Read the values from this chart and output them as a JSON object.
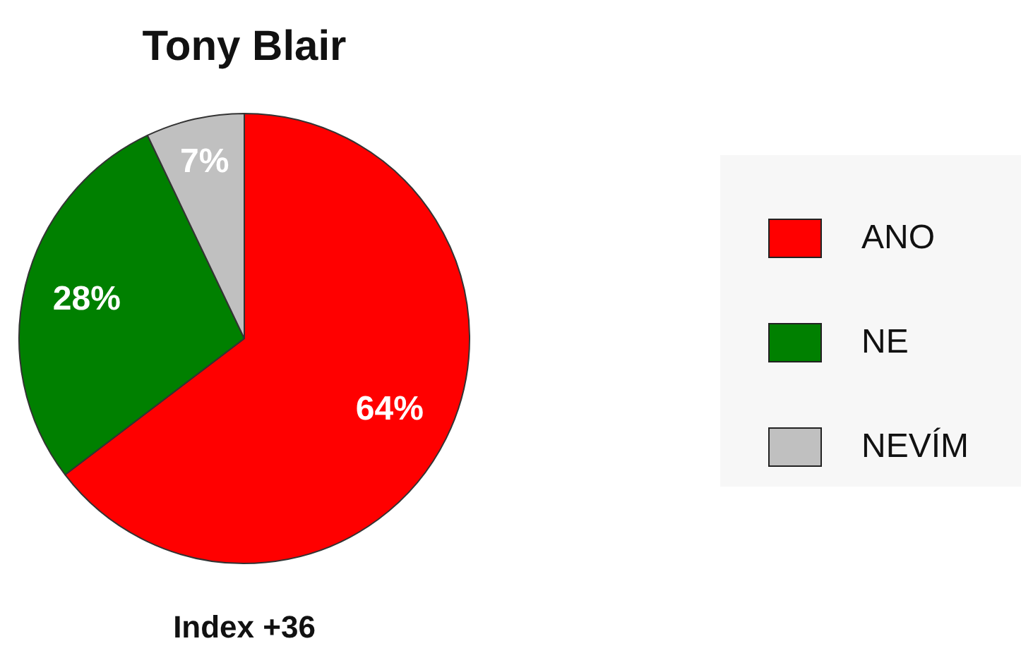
{
  "chart_data": {
    "type": "pie",
    "title": "Tony Blair",
    "categories": [
      "ANO",
      "NE",
      "NEVÍM"
    ],
    "values": [
      64,
      28,
      7
    ],
    "value_labels": [
      "64%",
      "28%",
      "7%"
    ],
    "colors": [
      "#ff0000",
      "#008000",
      "#c0c0c0"
    ],
    "legend": "right",
    "annotations": [
      "Index +36"
    ]
  }
}
